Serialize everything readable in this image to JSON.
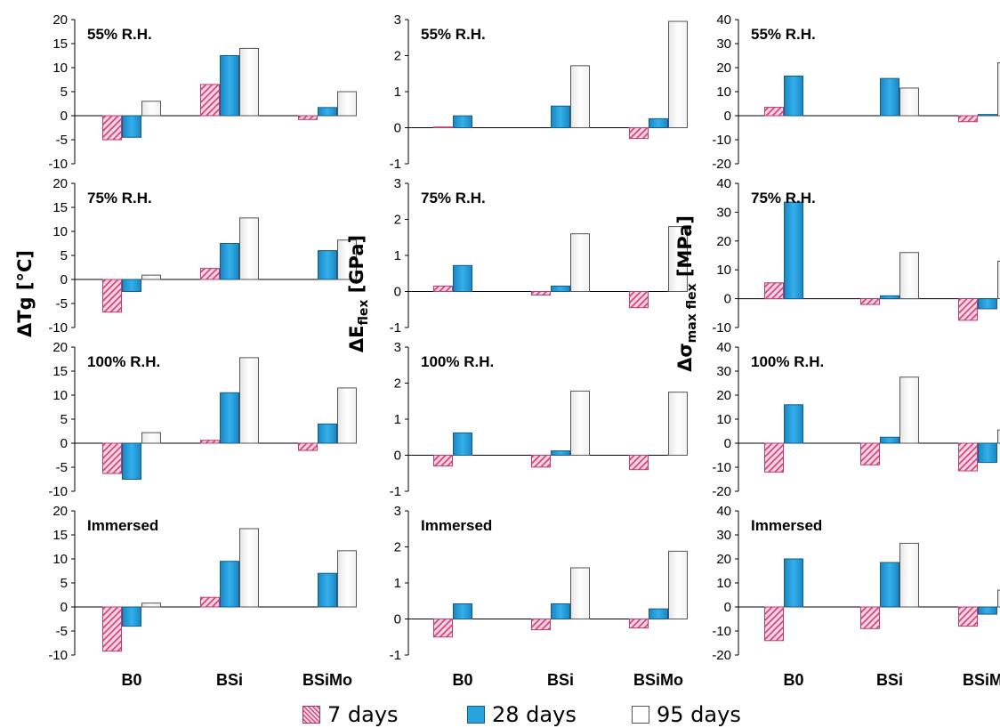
{
  "chart_data": {
    "type": "bar",
    "categories": [
      "B0",
      "BSi",
      "BSiMo"
    ],
    "legend": [
      "7 days",
      "28 days",
      "95 days"
    ],
    "row_labels": [
      "55% R.H.",
      "75% R.H.",
      "100% R.H.",
      "Immersed"
    ],
    "ylabels": {
      "tg": {
        "main": "ΔTg [°C]"
      },
      "e": {
        "main": "ΔE",
        "sub": "flex",
        "tail": " [GPa]"
      },
      "s": {
        "main": "Δσ",
        "sub": "max flex",
        "tail": " [MPa]"
      }
    },
    "panels": [
      {
        "row": 0,
        "col": 0,
        "ylim": [
          -10,
          20
        ],
        "ticks": [
          -10,
          -5,
          0,
          5,
          10,
          15,
          20
        ],
        "series": [
          {
            "name": "7 days",
            "values": [
              -5,
              6.5,
              -0.8
            ]
          },
          {
            "name": "28 days",
            "values": [
              -4.5,
              12.5,
              1.7
            ]
          },
          {
            "name": "95 days",
            "values": [
              3,
              14,
              5
            ]
          }
        ]
      },
      {
        "row": 0,
        "col": 1,
        "ylim": [
          -1,
          3
        ],
        "ticks": [
          -1,
          0,
          1,
          2,
          3
        ],
        "series": [
          {
            "name": "7 days",
            "values": [
              0.02,
              0,
              -0.3
            ]
          },
          {
            "name": "28 days",
            "values": [
              0.33,
              0.6,
              0.25
            ]
          },
          {
            "name": "95 days",
            "values": [
              0,
              1.72,
              2.95
            ]
          }
        ]
      },
      {
        "row": 0,
        "col": 2,
        "ylim": [
          -20,
          40
        ],
        "ticks": [
          -20,
          -10,
          0,
          10,
          20,
          30,
          40
        ],
        "series": [
          {
            "name": "7 days",
            "values": [
              3.5,
              0,
              -2.5
            ]
          },
          {
            "name": "28 days",
            "values": [
              16.5,
              15.5,
              0.5
            ]
          },
          {
            "name": "95 days",
            "values": [
              0,
              11.5,
              22
            ]
          }
        ]
      },
      {
        "row": 1,
        "col": 0,
        "ylim": [
          -10,
          20
        ],
        "ticks": [
          -10,
          -5,
          0,
          5,
          10,
          15,
          20
        ],
        "series": [
          {
            "name": "7 days",
            "values": [
              -6.8,
              2.3,
              0
            ]
          },
          {
            "name": "28 days",
            "values": [
              -2.5,
              7.5,
              6
            ]
          },
          {
            "name": "95 days",
            "values": [
              0.9,
              12.8,
              8.2
            ]
          }
        ]
      },
      {
        "row": 1,
        "col": 1,
        "ylim": [
          -1,
          3
        ],
        "ticks": [
          -1,
          0,
          1,
          2,
          3
        ],
        "series": [
          {
            "name": "7 days",
            "values": [
              0.15,
              -0.1,
              -0.45
            ]
          },
          {
            "name": "28 days",
            "values": [
              0.72,
              0.15,
              0
            ]
          },
          {
            "name": "95 days",
            "values": [
              0,
              1.6,
              1.8
            ]
          }
        ]
      },
      {
        "row": 1,
        "col": 2,
        "ylim": [
          -10,
          40
        ],
        "ticks": [
          -10,
          0,
          10,
          20,
          30,
          40
        ],
        "series": [
          {
            "name": "7 days",
            "values": [
              5.5,
              -2,
              -7.5
            ]
          },
          {
            "name": "28 days",
            "values": [
              33.5,
              1,
              -3.5
            ]
          },
          {
            "name": "95 days",
            "values": [
              0,
              16,
              13
            ]
          }
        ]
      },
      {
        "row": 2,
        "col": 0,
        "ylim": [
          -10,
          20
        ],
        "ticks": [
          -10,
          -5,
          0,
          5,
          10,
          15,
          20
        ],
        "series": [
          {
            "name": "7 days",
            "values": [
              -6.3,
              0.6,
              -1.5
            ]
          },
          {
            "name": "28 days",
            "values": [
              -7.5,
              10.5,
              4
            ]
          },
          {
            "name": "95 days",
            "values": [
              2.2,
              17.8,
              11.5
            ]
          }
        ]
      },
      {
        "row": 2,
        "col": 1,
        "ylim": [
          -1,
          3
        ],
        "ticks": [
          -1,
          0,
          1,
          2,
          3
        ],
        "series": [
          {
            "name": "7 days",
            "values": [
              -0.3,
              -0.33,
              -0.4
            ]
          },
          {
            "name": "28 days",
            "values": [
              0.62,
              0.12,
              0
            ]
          },
          {
            "name": "95 days",
            "values": [
              0,
              1.78,
              1.75
            ]
          }
        ]
      },
      {
        "row": 2,
        "col": 2,
        "ylim": [
          -20,
          40
        ],
        "ticks": [
          -20,
          -10,
          0,
          10,
          20,
          30,
          40
        ],
        "series": [
          {
            "name": "7 days",
            "values": [
              -12,
              -9,
              -11.5
            ]
          },
          {
            "name": "28 days",
            "values": [
              16,
              2.5,
              -8
            ]
          },
          {
            "name": "95 days",
            "values": [
              0,
              27.5,
              5.5
            ]
          }
        ]
      },
      {
        "row": 3,
        "col": 0,
        "ylim": [
          -10,
          20
        ],
        "ticks": [
          -10,
          -5,
          0,
          5,
          10,
          15,
          20
        ],
        "series": [
          {
            "name": "7 days",
            "values": [
              -9.2,
              2,
              0
            ]
          },
          {
            "name": "28 days",
            "values": [
              -4,
              9.5,
              7
            ]
          },
          {
            "name": "95 days",
            "values": [
              0.8,
              16.3,
              11.7
            ]
          }
        ]
      },
      {
        "row": 3,
        "col": 1,
        "ylim": [
          -1,
          3
        ],
        "ticks": [
          -1,
          0,
          1,
          2,
          3
        ],
        "series": [
          {
            "name": "7 days",
            "values": [
              -0.5,
              -0.3,
              -0.25
            ]
          },
          {
            "name": "28 days",
            "values": [
              0.42,
              0.42,
              0.28
            ]
          },
          {
            "name": "95 days",
            "values": [
              0,
              1.42,
              1.88
            ]
          }
        ]
      },
      {
        "row": 3,
        "col": 2,
        "ylim": [
          -20,
          40
        ],
        "ticks": [
          -20,
          -10,
          0,
          10,
          20,
          30,
          40
        ],
        "series": [
          {
            "name": "7 days",
            "values": [
              -14,
              -9,
              -8
            ]
          },
          {
            "name": "28 days",
            "values": [
              20,
              18.5,
              -3
            ]
          },
          {
            "name": "95 days",
            "values": [
              0,
              26.5,
              7
            ]
          }
        ]
      }
    ]
  },
  "colors": {
    "seven_days_fill": "#f9d7e4",
    "seven_days_stripe": "#d6467e",
    "twenty_eight_days_fill": "#29a3df",
    "twenty_eight_days_stroke": "#165a8a",
    "ninety_five_days_fill": "#ffffff",
    "axis": "#000000"
  }
}
